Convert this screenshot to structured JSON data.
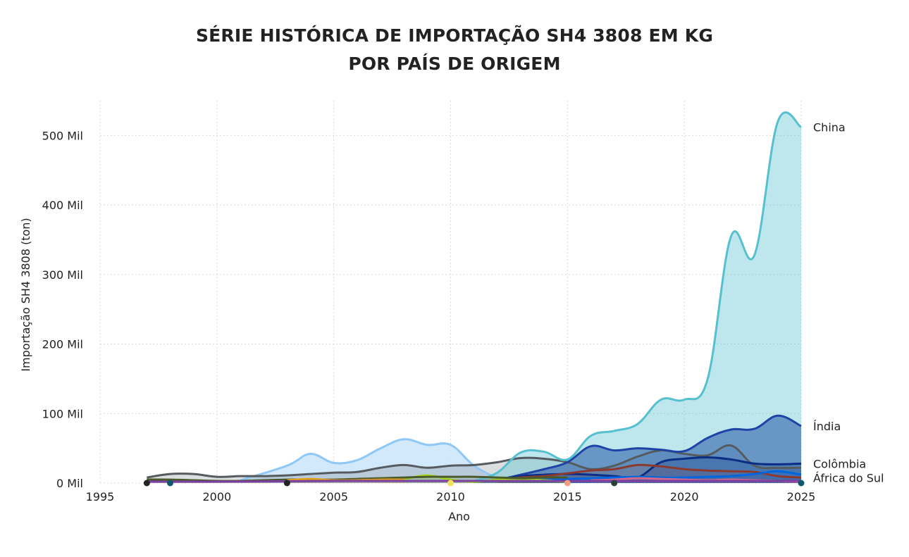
{
  "chart_data": {
    "type": "area",
    "title_lines": [
      "SÉRIE HISTÓRICA DE IMPORTAÇÃO SH4 3808 EM KG",
      "POR PAÍS DE ORIGEM"
    ],
    "xlabel": "Ano",
    "ylabel": "Importação SH4 3808 (ton)",
    "xlim": [
      1995,
      2025
    ],
    "ylim": [
      0,
      550000
    ],
    "x_ticks": [
      1995,
      2000,
      2005,
      2010,
      2015,
      2020,
      2025
    ],
    "y_ticks": [
      {
        "value": 0,
        "label": "0 Mil"
      },
      {
        "value": 100000,
        "label": "100 Mil"
      },
      {
        "value": 200000,
        "label": "200 Mil"
      },
      {
        "value": 300000,
        "label": "300 Mil"
      },
      {
        "value": 400000,
        "label": "400 Mil"
      },
      {
        "value": 500000,
        "label": "500 Mil"
      }
    ],
    "grid": true,
    "legend": "end-of-line labels",
    "series": [
      {
        "name": "",
        "color": "#90c8f5",
        "fill": "#cde6fb",
        "fill_opacity": 0.9,
        "points": [
          [
            2001,
            4000
          ],
          [
            2003,
            25000
          ],
          [
            2004,
            42000
          ],
          [
            2005,
            29000
          ],
          [
            2006,
            33000
          ],
          [
            2007,
            50000
          ],
          [
            2008,
            63000
          ],
          [
            2009,
            55000
          ],
          [
            2010,
            55000
          ],
          [
            2011,
            25000
          ],
          [
            2012,
            8000
          ],
          [
            2013,
            4000
          ],
          [
            2014,
            3000
          ]
        ]
      },
      {
        "name": "",
        "color": "#555b5f",
        "fill": "#555b5f",
        "fill_opacity": 0.2,
        "points": [
          [
            1997,
            8000
          ],
          [
            1998,
            13000
          ],
          [
            1999,
            13000
          ],
          [
            2000,
            9000
          ],
          [
            2001,
            10000
          ],
          [
            2002,
            10000
          ],
          [
            2003,
            11000
          ],
          [
            2004,
            13000
          ],
          [
            2005,
            15000
          ],
          [
            2006,
            16000
          ],
          [
            2007,
            22000
          ],
          [
            2008,
            26000
          ],
          [
            2009,
            22000
          ],
          [
            2010,
            25000
          ],
          [
            2011,
            26000
          ],
          [
            2012,
            30000
          ],
          [
            2013,
            36000
          ],
          [
            2014,
            35000
          ],
          [
            2015,
            30000
          ],
          [
            2016,
            20000
          ],
          [
            2017,
            25000
          ],
          [
            2018,
            38000
          ],
          [
            2019,
            47000
          ],
          [
            2020,
            42000
          ],
          [
            2021,
            40000
          ],
          [
            2022,
            54000
          ],
          [
            2023,
            25000
          ],
          [
            2024,
            22000
          ],
          [
            2025,
            22000
          ]
        ]
      },
      {
        "name": "China",
        "color": "#56c0cf",
        "fill": "#5bc3d0",
        "fill_opacity": 0.4,
        "points": [
          [
            2011,
            3000
          ],
          [
            2012,
            15000
          ],
          [
            2013,
            44000
          ],
          [
            2014,
            45000
          ],
          [
            2015,
            34000
          ],
          [
            2016,
            68000
          ],
          [
            2017,
            75000
          ],
          [
            2018,
            85000
          ],
          [
            2019,
            120000
          ],
          [
            2020,
            120000
          ],
          [
            2021,
            150000
          ],
          [
            2022,
            355000
          ],
          [
            2023,
            328000
          ],
          [
            2024,
            520000
          ],
          [
            2025,
            512000
          ]
        ]
      },
      {
        "name": "Índia",
        "color": "#1f44a6",
        "fill": "#2255a8",
        "fill_opacity": 0.55,
        "points": [
          [
            2011,
            2000
          ],
          [
            2012,
            5000
          ],
          [
            2013,
            12000
          ],
          [
            2014,
            20000
          ],
          [
            2015,
            30000
          ],
          [
            2016,
            53000
          ],
          [
            2017,
            47000
          ],
          [
            2018,
            50000
          ],
          [
            2019,
            48000
          ],
          [
            2020,
            46000
          ],
          [
            2021,
            65000
          ],
          [
            2022,
            77000
          ],
          [
            2023,
            78000
          ],
          [
            2024,
            97000
          ],
          [
            2025,
            82000
          ]
        ]
      },
      {
        "name": "Colômbia",
        "color": "#0b2e85",
        "fill": "#0b2e85",
        "fill_opacity": 0.25,
        "points": [
          [
            2012,
            4000
          ],
          [
            2013,
            10000
          ],
          [
            2014,
            12000
          ],
          [
            2015,
            13000
          ],
          [
            2016,
            12000
          ],
          [
            2017,
            10000
          ],
          [
            2018,
            8000
          ],
          [
            2019,
            30000
          ],
          [
            2020,
            35000
          ],
          [
            2021,
            37000
          ],
          [
            2022,
            34000
          ],
          [
            2023,
            28000
          ],
          [
            2024,
            27000
          ],
          [
            2025,
            28000
          ]
        ]
      },
      {
        "name": "",
        "color": "#8b3a2f",
        "fill": "#8b3a2f",
        "fill_opacity": 0.15,
        "points": [
          [
            2012,
            5000
          ],
          [
            2013,
            8000
          ],
          [
            2014,
            10000
          ],
          [
            2015,
            14000
          ],
          [
            2016,
            18000
          ],
          [
            2017,
            20000
          ],
          [
            2018,
            26000
          ],
          [
            2019,
            24000
          ],
          [
            2020,
            20000
          ],
          [
            2021,
            18000
          ],
          [
            2022,
            17000
          ],
          [
            2023,
            16000
          ],
          [
            2024,
            10000
          ],
          [
            2025,
            8000
          ]
        ]
      },
      {
        "name": "África do Sul",
        "color": "#0066dd",
        "fill": "#0066dd",
        "fill_opacity": 0.2,
        "points": [
          [
            2013,
            3000
          ],
          [
            2014,
            5000
          ],
          [
            2015,
            6000
          ],
          [
            2016,
            7000
          ],
          [
            2017,
            8000
          ],
          [
            2018,
            9000
          ],
          [
            2019,
            8000
          ],
          [
            2020,
            8000
          ],
          [
            2021,
            9000
          ],
          [
            2022,
            10000
          ],
          [
            2023,
            13000
          ],
          [
            2024,
            17000
          ],
          [
            2025,
            12000
          ]
        ]
      },
      {
        "name": "",
        "color": "#a5d61c",
        "fill": "#a5d61c",
        "fill_opacity": 0.2,
        "points": [
          [
            2007,
            3000
          ],
          [
            2008,
            6000
          ],
          [
            2009,
            11000
          ],
          [
            2010,
            5000
          ],
          [
            2011,
            2000
          ],
          [
            2012,
            5000
          ],
          [
            2013,
            6000
          ],
          [
            2014,
            4000
          ],
          [
            2015,
            2000
          ]
        ]
      },
      {
        "name": "",
        "color": "#4a5a2a",
        "fill": "#4a5a2a",
        "fill_opacity": 0.12,
        "points": [
          [
            1997,
            5000
          ],
          [
            1998,
            5000
          ],
          [
            1999,
            4000
          ],
          [
            2000,
            3000
          ],
          [
            2001,
            3000
          ],
          [
            2002,
            4000
          ],
          [
            2003,
            5000
          ],
          [
            2004,
            5000
          ],
          [
            2005,
            5000
          ],
          [
            2006,
            6000
          ],
          [
            2007,
            7000
          ],
          [
            2008,
            8000
          ],
          [
            2009,
            9000
          ],
          [
            2010,
            9000
          ],
          [
            2011,
            9000
          ],
          [
            2012,
            8000
          ],
          [
            2013,
            7000
          ],
          [
            2014,
            8000
          ],
          [
            2015,
            8000
          ]
        ]
      },
      {
        "name": "",
        "color": "#e0a020",
        "fill": "#e0a020",
        "fill_opacity": 0.15,
        "points": [
          [
            2003,
            4000
          ],
          [
            2004,
            6000
          ],
          [
            2005,
            4000
          ],
          [
            2006,
            4000
          ],
          [
            2007,
            5000
          ],
          [
            2008,
            5000
          ]
        ]
      },
      {
        "name": "",
        "color": "#d46a8a",
        "fill": "#d46a8a",
        "fill_opacity": 0.12,
        "points": [
          [
            2016,
            4000
          ],
          [
            2017,
            5000
          ],
          [
            2018,
            7000
          ],
          [
            2019,
            6000
          ],
          [
            2020,
            5000
          ],
          [
            2021,
            4000
          ],
          [
            2022,
            5000
          ],
          [
            2023,
            4000
          ],
          [
            2024,
            3000
          ],
          [
            2025,
            2000
          ]
        ]
      },
      {
        "name": "",
        "color": "#7a3fa0",
        "fill": "#7a3fa0",
        "fill_opacity": 0.12,
        "points": [
          [
            1997,
            2000
          ],
          [
            2000,
            2000
          ],
          [
            2005,
            3000
          ],
          [
            2010,
            3000
          ],
          [
            2015,
            3000
          ],
          [
            2020,
            3000
          ],
          [
            2025,
            3000
          ]
        ]
      }
    ],
    "markers": [
      {
        "x": 1997,
        "y": 0,
        "color": "#222222"
      },
      {
        "x": 1998,
        "y": 0,
        "color": "#0b5a6e"
      },
      {
        "x": 2003,
        "y": 0,
        "color": "#222222"
      },
      {
        "x": 2010,
        "y": 0,
        "color": "#f2e25a"
      },
      {
        "x": 2015,
        "y": 0,
        "color": "#f0a080"
      },
      {
        "x": 2017,
        "y": 0,
        "color": "#2a3f3a"
      },
      {
        "x": 2025,
        "y": 0,
        "color": "#0b5a6e"
      }
    ]
  }
}
